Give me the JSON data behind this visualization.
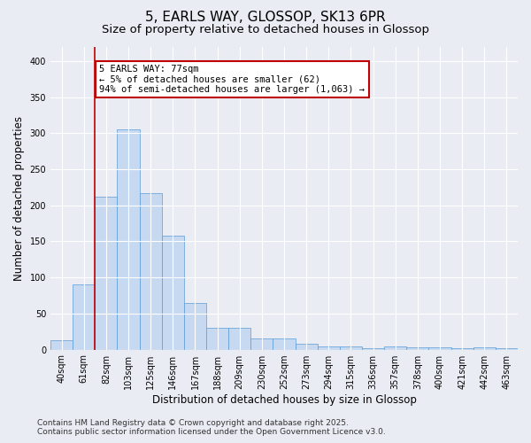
{
  "title1": "5, EARLS WAY, GLOSSOP, SK13 6PR",
  "title2": "Size of property relative to detached houses in Glossop",
  "xlabel": "Distribution of detached houses by size in Glossop",
  "ylabel": "Number of detached properties",
  "categories": [
    "40sqm",
    "61sqm",
    "82sqm",
    "103sqm",
    "125sqm",
    "146sqm",
    "167sqm",
    "188sqm",
    "209sqm",
    "230sqm",
    "252sqm",
    "273sqm",
    "294sqm",
    "315sqm",
    "336sqm",
    "357sqm",
    "378sqm",
    "400sqm",
    "421sqm",
    "442sqm",
    "463sqm"
  ],
  "values": [
    13,
    90,
    212,
    305,
    217,
    158,
    65,
    30,
    30,
    15,
    15,
    8,
    5,
    4,
    2,
    4,
    3,
    3,
    2,
    3,
    2
  ],
  "bar_color": "#c6d9f0",
  "bar_edge_color": "#5b9bd5",
  "vline_x": 1.5,
  "vline_color": "#c00000",
  "annotation_text": "5 EARLS WAY: 77sqm\n← 5% of detached houses are smaller (62)\n94% of semi-detached houses are larger (1,063) →",
  "annotation_box_color": "#c00000",
  "ylim": [
    0,
    420
  ],
  "yticks": [
    0,
    50,
    100,
    150,
    200,
    250,
    300,
    350,
    400
  ],
  "background_color": "#eaecf4",
  "plot_bg_color": "#eaecf4",
  "footer_line1": "Contains HM Land Registry data © Crown copyright and database right 2025.",
  "footer_line2": "Contains public sector information licensed under the Open Government Licence v3.0.",
  "title_fontsize": 11,
  "subtitle_fontsize": 9.5,
  "axis_label_fontsize": 8.5,
  "tick_fontsize": 7,
  "annotation_fontsize": 7.5,
  "footer_fontsize": 6.5
}
